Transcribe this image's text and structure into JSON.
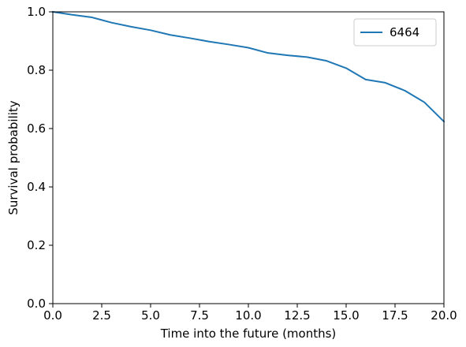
{
  "chart_data": {
    "type": "line",
    "title": "",
    "xlabel": "Time into the future (months)",
    "ylabel": "Survival probability",
    "xlim": [
      0,
      20
    ],
    "ylim": [
      0,
      1
    ],
    "xticks": [
      0,
      2.5,
      5,
      7.5,
      10,
      12.5,
      15,
      17.5,
      20
    ],
    "xtick_labels": [
      "0.0",
      "2.5",
      "5.0",
      "7.5",
      "10.0",
      "12.5",
      "15.0",
      "17.5",
      "20.0"
    ],
    "yticks": [
      0,
      0.2,
      0.4,
      0.6,
      0.8,
      1.0
    ],
    "ytick_labels": [
      "0.0",
      "0.2",
      "0.4",
      "0.6",
      "0.8",
      "1.0"
    ],
    "grid": false,
    "legend_position": "top-right",
    "series": [
      {
        "name": "6464",
        "color": "#1f77b4",
        "x": [
          0,
          1,
          2,
          3,
          4,
          5,
          6,
          7,
          8,
          9,
          10,
          11,
          12,
          13,
          14,
          15,
          16,
          17,
          18,
          19,
          20
        ],
        "y": [
          1.0,
          0.99,
          0.981,
          0.963,
          0.949,
          0.937,
          0.921,
          0.91,
          0.898,
          0.888,
          0.877,
          0.859,
          0.851,
          0.845,
          0.832,
          0.807,
          0.768,
          0.757,
          0.73,
          0.69,
          0.624
        ]
      }
    ]
  }
}
